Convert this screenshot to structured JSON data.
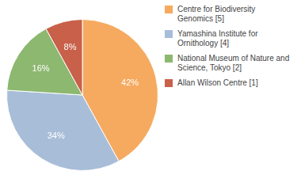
{
  "chart_data": {
    "type": "pie",
    "categories": [
      "Centre for Biodiversity\nGenomics [5]",
      "Yamashina Institute for\nOrnithology [4]",
      "National Museum of Nature and\nScience, Tokyo [2]",
      "Allan Wilson Centre [1]"
    ],
    "values": [
      42,
      34,
      16,
      8
    ],
    "value_labels": [
      "42%",
      "34%",
      "16%",
      "8%"
    ],
    "colors": [
      "#f5aa5f",
      "#a8bdd8",
      "#8db870",
      "#c8604a"
    ],
    "data_labels": true,
    "legend": "right"
  }
}
